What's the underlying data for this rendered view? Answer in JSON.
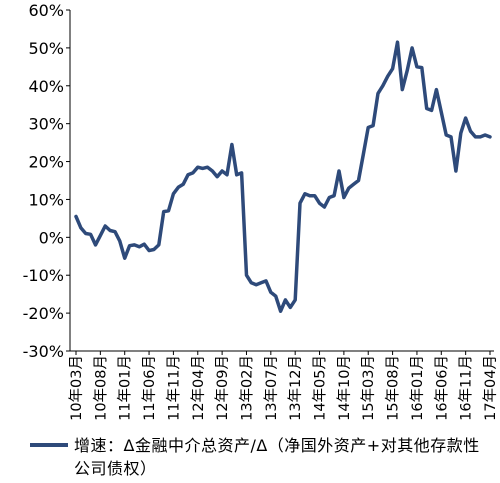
{
  "chart_data": {
    "type": "line",
    "title": "",
    "xlabel": "",
    "ylabel": "",
    "ylim": [
      -30,
      60
    ],
    "yticks": [
      "60%",
      "50%",
      "40%",
      "30%",
      "20%",
      "10%",
      "0%",
      "-10%",
      "-20%",
      "-30%"
    ],
    "ytick_values": [
      60,
      50,
      40,
      30,
      20,
      10,
      0,
      -10,
      -20,
      -30
    ],
    "x": [
      "10年03月",
      "10年04月",
      "10年05月",
      "10年06月",
      "10年07月",
      "10年08月",
      "10年09月",
      "10年10月",
      "10年11月",
      "10年12月",
      "11年01月",
      "11年02月",
      "11年03月",
      "11年04月",
      "11年05月",
      "11年06月",
      "11年07月",
      "11年08月",
      "11年09月",
      "11年10月",
      "11年11月",
      "11年12月",
      "12年01月",
      "12年02月",
      "12年03月",
      "12年04月",
      "12年05月",
      "12年06月",
      "12年07月",
      "12年08月",
      "12年09月",
      "12年10月",
      "12年11月",
      "12年12月",
      "13年01月",
      "13年02月",
      "13年03月",
      "13年04月",
      "13年05月",
      "13年06月",
      "13年07月",
      "13年08月",
      "13年09月",
      "13年10月",
      "13年11月",
      "13年12月",
      "14年01月",
      "14年02月",
      "14年03月",
      "14年04月",
      "14年05月",
      "14年06月",
      "14年07月",
      "14年08月",
      "14年09月",
      "14年10月",
      "14年11月",
      "14年12月",
      "15年01月",
      "15年02月",
      "15年03月",
      "15年04月",
      "15年05月",
      "15年06月",
      "15年07月",
      "15年08月",
      "15年09月",
      "15年10月",
      "15年11月",
      "15年12月",
      "16年01月",
      "16年02月",
      "16年03月",
      "16年04月",
      "16年05月",
      "16年06月",
      "16年07月",
      "16年08月",
      "16年09月",
      "16年10月",
      "16年11月",
      "16年12月",
      "17年01月",
      "17年02月",
      "17年03月",
      "17年04月"
    ],
    "xtick_labels": [
      "10年03月",
      "10年08月",
      "11年01月",
      "11年06月",
      "11年11月",
      "12年04月",
      "12年09月",
      "13年02月",
      "13年07月",
      "13年12月",
      "14年05月",
      "14年10月",
      "15年03月",
      "15年08月",
      "16年01月",
      "16年06月",
      "16年11月",
      "17年04月"
    ],
    "series": [
      {
        "name": "增速：Δ金融中介总资产/Δ（净国外资产+对其他存款性公司债权）",
        "color": "#2e4a7a",
        "values": [
          5.5,
          2.5,
          1,
          0.8,
          -2,
          0.5,
          3,
          1.8,
          1.5,
          -1,
          -5.5,
          -2.2,
          -2,
          -2.5,
          -1.8,
          -3.5,
          -3.2,
          -2,
          6.8,
          7,
          11.5,
          13.2,
          14,
          16.5,
          17,
          18.5,
          18.2,
          18.5,
          17.5,
          16,
          17.5,
          16.5,
          24.5,
          16.5,
          17,
          -10,
          -12,
          -12.5,
          -12,
          -11.5,
          -14.5,
          -15.5,
          -19.5,
          -16.5,
          -18.5,
          -16.5,
          9,
          11.5,
          11,
          11,
          9,
          8,
          10.5,
          11,
          17.5,
          10.5,
          13,
          14,
          15,
          22,
          29,
          29.5,
          38,
          40,
          42.5,
          44.5,
          51.5,
          39,
          44,
          50,
          45,
          44.8,
          34,
          33.5,
          39,
          33,
          27,
          26.5,
          17.5,
          27.5,
          31.5,
          28,
          26.5,
          26.5,
          27,
          26.5
        ]
      }
    ],
    "grid": false,
    "legend_position": "bottom"
  }
}
